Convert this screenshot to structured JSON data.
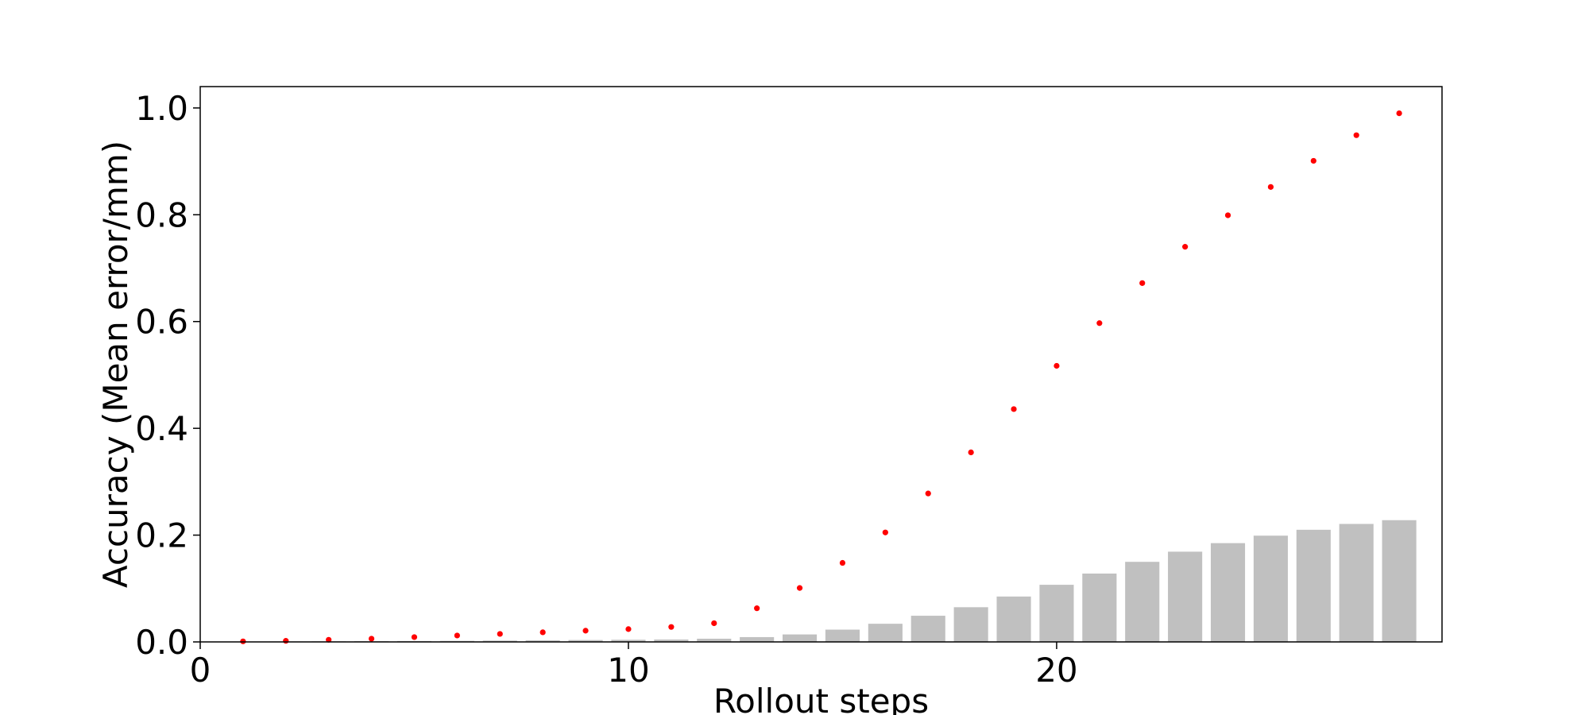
{
  "chart_data": {
    "type": "bar",
    "title": "",
    "xlabel": "Rollout steps",
    "ylabel": "Accuracy (Mean error/mm)",
    "xlim": [
      0,
      29
    ],
    "ylim": [
      0,
      1.04
    ],
    "x_ticks": [
      0,
      10,
      20
    ],
    "x_tick_labels": [
      "0",
      "10",
      "20"
    ],
    "y_ticks": [
      0.0,
      0.2,
      0.4,
      0.6,
      0.8,
      1.0
    ],
    "y_tick_labels": [
      "0.0",
      "0.2",
      "0.4",
      "0.6",
      "0.8",
      "1.0"
    ],
    "grid": false,
    "x": [
      1,
      2,
      3,
      4,
      5,
      6,
      7,
      8,
      9,
      10,
      11,
      12,
      13,
      14,
      15,
      16,
      17,
      18,
      19,
      20,
      21,
      22,
      23,
      24,
      25,
      26,
      27,
      28
    ],
    "series": [
      {
        "type": "bar",
        "color": "#c0c0c0",
        "values": [
          0.0005,
          0.0008,
          0.001,
          0.0013,
          0.0017,
          0.002,
          0.0025,
          0.003,
          0.0035,
          0.004,
          0.0045,
          0.006,
          0.009,
          0.014,
          0.023,
          0.034,
          0.049,
          0.065,
          0.085,
          0.107,
          0.128,
          0.15,
          0.169,
          0.185,
          0.199,
          0.21,
          0.221,
          0.228
        ]
      },
      {
        "type": "scatter",
        "color": "#ff0000",
        "values": [
          0.001,
          0.002,
          0.004,
          0.006,
          0.009,
          0.012,
          0.015,
          0.018,
          0.021,
          0.024,
          0.028,
          0.035,
          0.063,
          0.101,
          0.148,
          0.205,
          0.278,
          0.355,
          0.436,
          0.517,
          0.597,
          0.672,
          0.74,
          0.799,
          0.852,
          0.901,
          0.949,
          0.99
        ]
      }
    ]
  }
}
